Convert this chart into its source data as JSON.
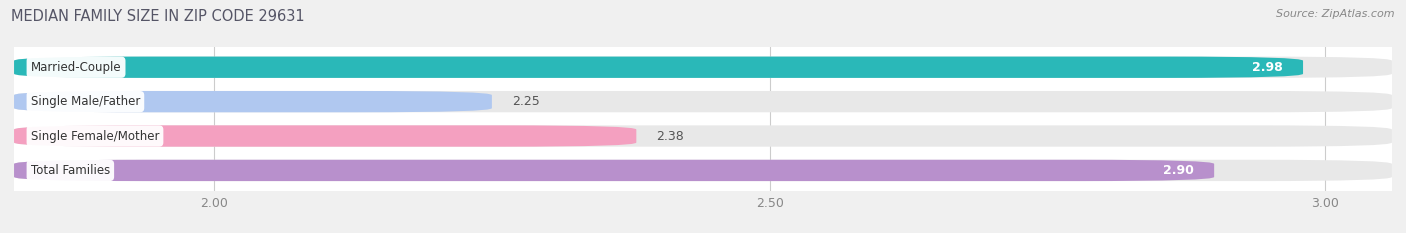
{
  "title": "MEDIAN FAMILY SIZE IN ZIP CODE 29631",
  "source": "Source: ZipAtlas.com",
  "categories": [
    "Married-Couple",
    "Single Male/Father",
    "Single Female/Mother",
    "Total Families"
  ],
  "values": [
    2.98,
    2.25,
    2.38,
    2.9
  ],
  "bar_colors": [
    "#2ab8b8",
    "#b0c8f0",
    "#f4a0c0",
    "#b890cc"
  ],
  "xmin": 1.82,
  "xmax": 3.06,
  "xticks": [
    2.0,
    2.5,
    3.0
  ],
  "background_color": "#f0f0f0",
  "bar_area_bg": "#ffffff",
  "bar_height": 0.62,
  "value_labels": [
    "2.98",
    "2.25",
    "2.38",
    "2.90"
  ],
  "value_inside": [
    true,
    false,
    false,
    true
  ],
  "title_color": "#555566",
  "source_color": "#888888",
  "tick_color": "#888888",
  "grid_color": "#cccccc"
}
